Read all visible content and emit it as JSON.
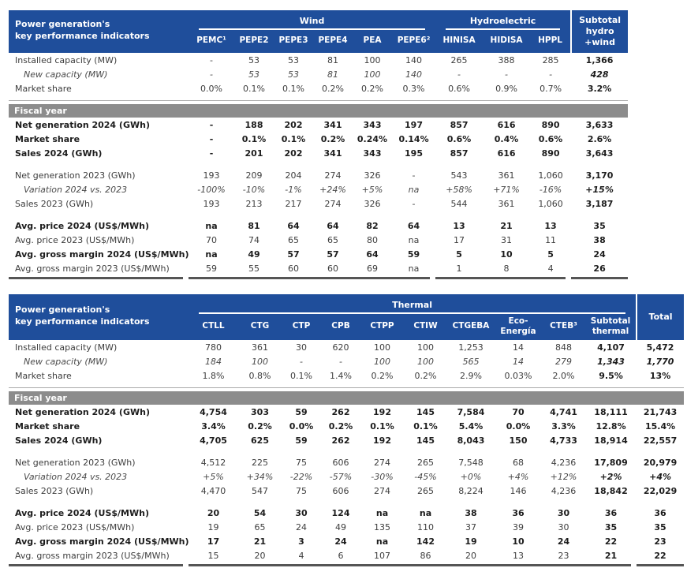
{
  "colors": {
    "header_blue": "#1F4E9B",
    "band_gray": "#8C8C8C",
    "rule_dark": "#555555",
    "rule_light": "#ABABAB"
  },
  "tables": [
    {
      "name": "wind-hydro-kpi-table",
      "title": "Power generation's\nkey performance indicators",
      "groups": [
        {
          "label": "Wind",
          "columns": [
            "PEMC¹",
            "PEPE2",
            "PEPE3",
            "PEPE4",
            "PEA",
            "PEPE6²"
          ]
        },
        {
          "label": "Hydroelectric",
          "columns": [
            "HINISA",
            "HIDISA",
            "HPPL"
          ]
        }
      ],
      "last_column": "Subtotal\nhydro\n+wind",
      "strong_columns": [
        9
      ],
      "blocks": [
        {
          "rows": [
            {
              "label": "Installed capacity (MW)",
              "style": "normal",
              "values": [
                "-",
                "53",
                "53",
                "81",
                "100",
                "140",
                "265",
                "388",
                "285",
                "1,366"
              ]
            },
            {
              "label": "New capacity (MW)",
              "style": "italic",
              "values": [
                "-",
                "53",
                "53",
                "81",
                "100",
                "140",
                "-",
                "-",
                "-",
                "428"
              ]
            },
            {
              "label": "Market share",
              "style": "normal",
              "values": [
                "0.0%",
                "0.1%",
                "0.1%",
                "0.2%",
                "0.2%",
                "0.3%",
                "0.6%",
                "0.9%",
                "0.7%",
                "3.2%"
              ]
            }
          ]
        },
        {
          "band": "Fiscal year",
          "rows": [
            {
              "label": "Net generation 2024 (GWh)",
              "style": "bold",
              "values": [
                "-",
                "188",
                "202",
                "341",
                "343",
                "197",
                "857",
                "616",
                "890",
                "3,633"
              ]
            },
            {
              "label": "Market share",
              "style": "bold",
              "values": [
                "-",
                "0.1%",
                "0.1%",
                "0.2%",
                "0.24%",
                "0.14%",
                "0.6%",
                "0.4%",
                "0.6%",
                "2.6%"
              ]
            },
            {
              "label": "Sales 2024 (GWh)",
              "style": "bold",
              "values": [
                "-",
                "201",
                "202",
                "341",
                "343",
                "195",
                "857",
                "616",
                "890",
                "3,643"
              ]
            }
          ]
        },
        {
          "rows": [
            {
              "label": "Net generation 2023 (GWh)",
              "style": "normal",
              "values": [
                "193",
                "209",
                "204",
                "274",
                "326",
                "-",
                "543",
                "361",
                "1,060",
                "3,170"
              ]
            },
            {
              "label": "Variation 2024 vs. 2023",
              "style": "italic",
              "values": [
                "-100%",
                "-10%",
                "-1%",
                "+24%",
                "+5%",
                "na",
                "+58%",
                "+71%",
                "-16%",
                "+15%"
              ]
            },
            {
              "label": "Sales 2023 (GWh)",
              "style": "normal",
              "values": [
                "193",
                "213",
                "217",
                "274",
                "326",
                "-",
                "544",
                "361",
                "1,060",
                "3,187"
              ]
            }
          ]
        },
        {
          "rows": [
            {
              "label": "Avg. price 2024 (US$/MWh)",
              "style": "bold",
              "values": [
                "na",
                "81",
                "64",
                "64",
                "82",
                "64",
                "13",
                "21",
                "13",
                "35"
              ]
            },
            {
              "label": "Avg. price 2023 (US$/MWh)",
              "style": "normal",
              "values": [
                "70",
                "74",
                "65",
                "65",
                "80",
                "na",
                "17",
                "31",
                "11",
                "38"
              ]
            },
            {
              "label": "Avg. gross margin 2024 (US$/MWh)",
              "style": "bold",
              "values": [
                "na",
                "49",
                "57",
                "57",
                "64",
                "59",
                "5",
                "10",
                "5",
                "24"
              ]
            },
            {
              "label": "Avg. gross margin 2023 (US$/MWh)",
              "style": "normal",
              "values": [
                "59",
                "55",
                "60",
                "60",
                "69",
                "na",
                "1",
                "8",
                "4",
                "26"
              ]
            }
          ]
        }
      ]
    },
    {
      "name": "thermal-kpi-table",
      "title": "Power generation's\nkey performance indicators",
      "groups": [
        {
          "label": "Thermal",
          "columns": [
            "CTLL",
            "CTG",
            "CTP",
            "CPB",
            "CTPP",
            "CTIW",
            "CTGEBA",
            "Eco-\nEnergía",
            "CTEB³",
            "Subtotal\nthermal"
          ]
        }
      ],
      "last_column": "Total",
      "strong_columns": [
        9,
        10
      ],
      "blocks": [
        {
          "rows": [
            {
              "label": "Installed capacity (MW)",
              "style": "normal",
              "values": [
                "780",
                "361",
                "30",
                "620",
                "100",
                "100",
                "1,253",
                "14",
                "848",
                "4,107",
                "5,472"
              ]
            },
            {
              "label": "New capacity (MW)",
              "style": "italic",
              "values": [
                "184",
                "100",
                "-",
                "-",
                "100",
                "100",
                "565",
                "14",
                "279",
                "1,343",
                "1,770"
              ]
            },
            {
              "label": "Market share",
              "style": "normal",
              "values": [
                "1.8%",
                "0.8%",
                "0.1%",
                "1.4%",
                "0.2%",
                "0.2%",
                "2.9%",
                "0.03%",
                "2.0%",
                "9.5%",
                "13%"
              ]
            }
          ]
        },
        {
          "band": "Fiscal year",
          "rows": [
            {
              "label": "Net generation 2024 (GWh)",
              "style": "bold",
              "values": [
                "4,754",
                "303",
                "59",
                "262",
                "192",
                "145",
                "7,584",
                "70",
                "4,741",
                "18,111",
                "21,743"
              ]
            },
            {
              "label": "Market share",
              "style": "bold",
              "values": [
                "3.4%",
                "0.2%",
                "0.0%",
                "0.2%",
                "0.1%",
                "0.1%",
                "5.4%",
                "0.0%",
                "3.3%",
                "12.8%",
                "15.4%"
              ]
            },
            {
              "label": "Sales 2024 (GWh)",
              "style": "bold",
              "values": [
                "4,705",
                "625",
                "59",
                "262",
                "192",
                "145",
                "8,043",
                "150",
                "4,733",
                "18,914",
                "22,557"
              ]
            }
          ]
        },
        {
          "rows": [
            {
              "label": "Net generation 2023 (GWh)",
              "style": "normal",
              "values": [
                "4,512",
                "225",
                "75",
                "606",
                "274",
                "265",
                "7,548",
                "68",
                "4,236",
                "17,809",
                "20,979"
              ]
            },
            {
              "label": "Variation 2024 vs. 2023",
              "style": "italic",
              "values": [
                "+5%",
                "+34%",
                "-22%",
                "-57%",
                "-30%",
                "-45%",
                "+0%",
                "+4%",
                "+12%",
                "+2%",
                "+4%"
              ]
            },
            {
              "label": "Sales 2023 (GWh)",
              "style": "normal",
              "values": [
                "4,470",
                "547",
                "75",
                "606",
                "274",
                "265",
                "8,224",
                "146",
                "4,236",
                "18,842",
                "22,029"
              ]
            }
          ]
        },
        {
          "rows": [
            {
              "label": "Avg. price 2024 (US$/MWh)",
              "style": "bold",
              "values": [
                "20",
                "54",
                "30",
                "124",
                "na",
                "na",
                "38",
                "36",
                "30",
                "36",
                "36"
              ]
            },
            {
              "label": "Avg. price 2023 (US$/MWh)",
              "style": "normal",
              "values": [
                "19",
                "65",
                "24",
                "49",
                "135",
                "110",
                "37",
                "39",
                "30",
                "35",
                "35"
              ]
            },
            {
              "label": "Avg. gross margin 2024 (US$/MWh)",
              "style": "bold",
              "values": [
                "17",
                "21",
                "3",
                "24",
                "na",
                "142",
                "19",
                "10",
                "24",
                "22",
                "23"
              ]
            },
            {
              "label": "Avg. gross margin 2023 (US$/MWh)",
              "style": "normal",
              "values": [
                "15",
                "20",
                "4",
                "6",
                "107",
                "86",
                "20",
                "13",
                "23",
                "21",
                "22"
              ]
            }
          ]
        }
      ]
    }
  ]
}
